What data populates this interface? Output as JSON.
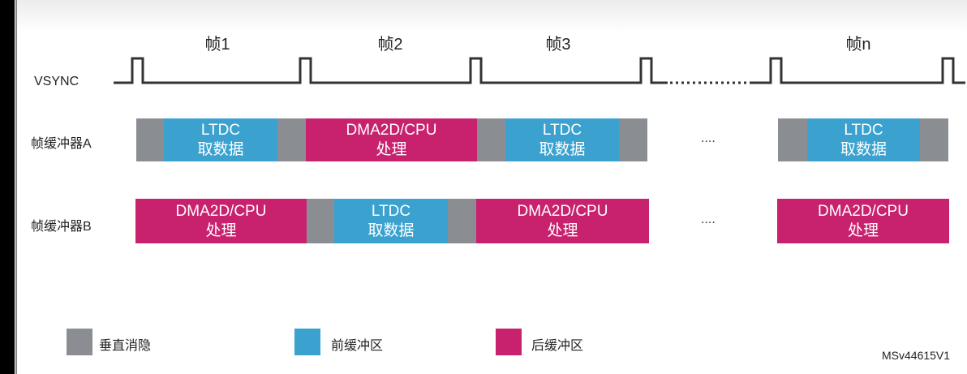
{
  "frames": [
    "帧1",
    "帧2",
    "帧3",
    "帧n"
  ],
  "vsync_label": "VSYNC",
  "rows": {
    "a": "帧缓冲器A",
    "b": "帧缓冲器B"
  },
  "blocks": {
    "ltdc_1": "LTDC",
    "ltdc_2": "取数据",
    "dma_1": "DMA2D/CPU",
    "dma_2": "处理"
  },
  "ellipsis": "....",
  "legend": [
    {
      "label": "垂直消隐",
      "color": "#8a8d92"
    },
    {
      "label": "前缓冲区",
      "color": "#3ba2cf"
    },
    {
      "label": "后缓冲区",
      "color": "#c8226f"
    }
  ],
  "figure_id": "MSv44615V1"
}
